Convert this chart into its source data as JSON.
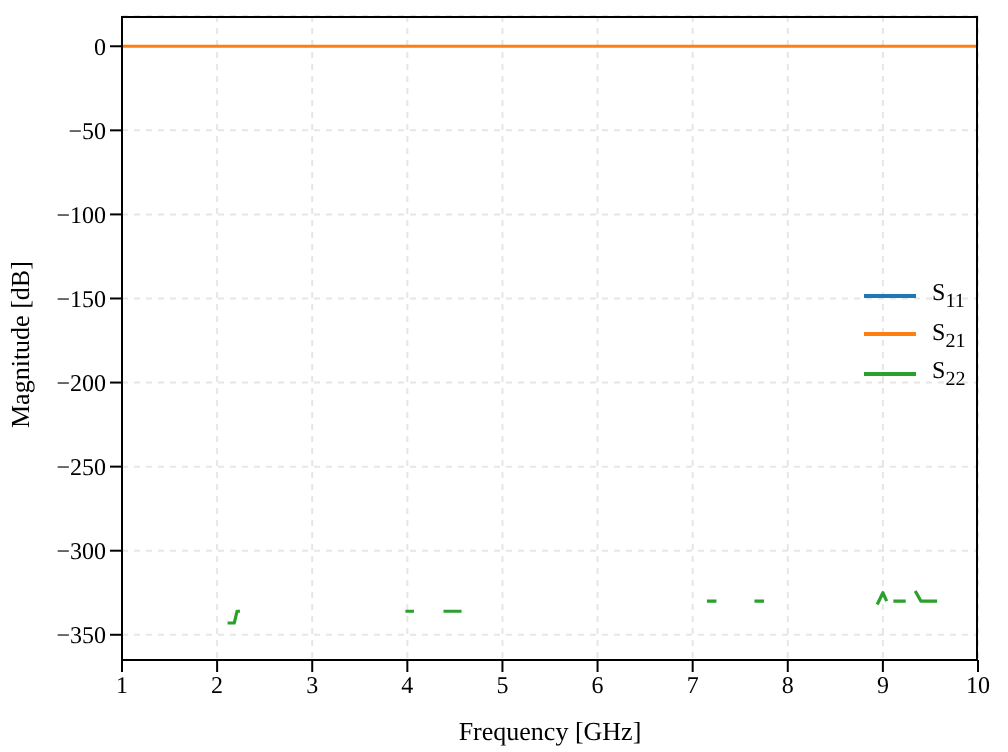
{
  "chart_data": {
    "type": "line",
    "xlabel": "Frequency [GHz]",
    "ylabel": "Magnitude [dB]",
    "xlim": [
      1,
      10
    ],
    "xticks": [
      1,
      2,
      3,
      4,
      5,
      6,
      7,
      8,
      9,
      10
    ],
    "ylim": [
      -365,
      18
    ],
    "yticks": [
      0,
      -50,
      -100,
      -150,
      -200,
      -250,
      -300,
      -350
    ],
    "grid": true,
    "legend": "right",
    "line_style": "solid",
    "marker": "none",
    "series": [
      {
        "name": "S$_{11}$",
        "color": "#1f77b4"
      },
      {
        "name": "S$_{21}$",
        "color": "#ff7f0e",
        "x": [
          1,
          10
        ],
        "values": [
          0,
          0
        ]
      },
      {
        "name": "S$_{22}$",
        "color": "#2ca02c",
        "x": [
          2.11,
          2.18,
          2.21,
          2.24,
          2.3,
          3.98,
          4.07,
          4.2,
          4.38,
          4.57,
          5,
          7.15,
          7.25,
          7.4,
          7.65,
          7.75,
          8,
          8.94,
          9.0,
          9.04,
          9.07,
          9.11,
          9.24,
          9.3,
          9.34,
          9.4,
          9.57
        ],
        "values": [
          -343,
          -343,
          -336,
          -336,
          null,
          -336,
          -336,
          null,
          -336,
          -336,
          null,
          -330,
          -330,
          null,
          -330,
          -330,
          null,
          -332,
          -325,
          -330,
          null,
          -330,
          -330,
          null,
          -324,
          -330,
          -330
        ]
      }
    ]
  }
}
